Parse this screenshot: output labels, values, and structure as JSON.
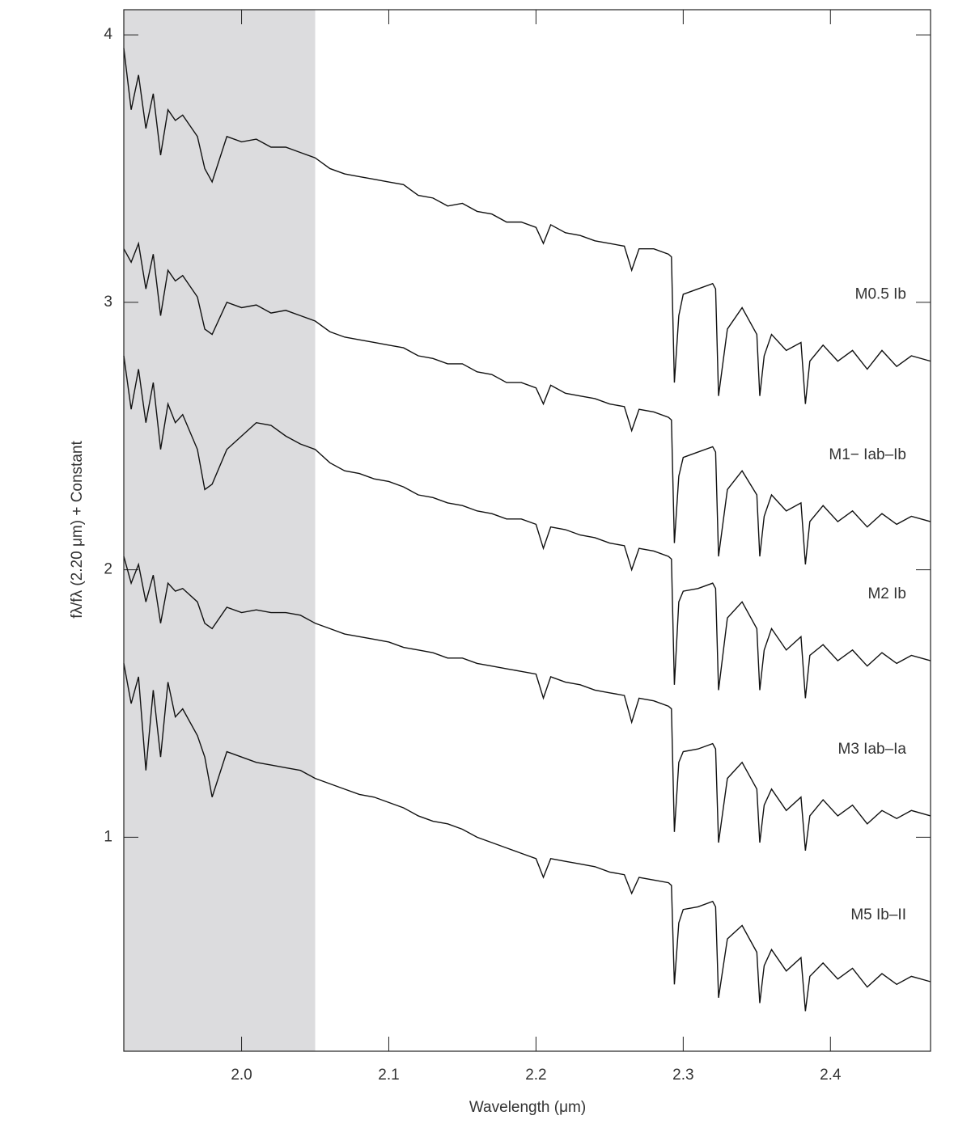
{
  "chart_data": {
    "type": "line",
    "xlabel": "Wavelength (μm)",
    "ylabel": "fλ/fλ (2.20 μm) + Constant",
    "xlim": [
      1.92,
      2.468
    ],
    "ylim": [
      0.2,
      4.094
    ],
    "xticks": [
      {
        "value": 2,
        "label": "2.0"
      },
      2.1,
      2.2,
      2.3,
      2.4
    ],
    "yticks": [
      1,
      2,
      3,
      4
    ],
    "shade_x": [
      1.92,
      2.05
    ],
    "shade_color": "#dcdcde",
    "x": [
      1.92,
      1.925,
      1.93,
      1.935,
      1.94,
      1.945,
      1.95,
      1.955,
      1.96,
      1.97,
      1.975,
      1.98,
      1.99,
      2.0,
      2.01,
      2.02,
      2.03,
      2.04,
      2.05,
      2.06,
      2.07,
      2.08,
      2.09,
      2.1,
      2.11,
      2.12,
      2.13,
      2.14,
      2.15,
      2.16,
      2.17,
      2.18,
      2.19,
      2.2,
      2.205,
      2.21,
      2.22,
      2.23,
      2.24,
      2.25,
      2.26,
      2.265,
      2.27,
      2.28,
      2.29,
      2.292,
      2.294,
      2.297,
      2.3,
      2.31,
      2.32,
      2.322,
      2.324,
      2.33,
      2.34,
      2.35,
      2.352,
      2.355,
      2.36,
      2.37,
      2.38,
      2.383,
      2.386,
      2.395,
      2.405,
      2.415,
      2.425,
      2.435,
      2.445,
      2.455,
      2.468
    ],
    "series": [
      {
        "name": "M0.5 Ib",
        "color": "#111111",
        "values": [
          3.95,
          3.72,
          3.85,
          3.65,
          3.78,
          3.55,
          3.72,
          3.68,
          3.7,
          3.62,
          3.5,
          3.45,
          3.62,
          3.6,
          3.61,
          3.58,
          3.58,
          3.56,
          3.54,
          3.5,
          3.48,
          3.47,
          3.46,
          3.45,
          3.44,
          3.4,
          3.39,
          3.36,
          3.37,
          3.34,
          3.33,
          3.3,
          3.3,
          3.28,
          3.22,
          3.29,
          3.26,
          3.25,
          3.23,
          3.22,
          3.21,
          3.12,
          3.2,
          3.2,
          3.18,
          3.17,
          2.7,
          2.95,
          3.03,
          3.05,
          3.07,
          3.05,
          2.65,
          2.9,
          2.98,
          2.88,
          2.65,
          2.8,
          2.88,
          2.82,
          2.85,
          2.62,
          2.78,
          2.84,
          2.78,
          2.82,
          2.75,
          2.82,
          2.76,
          2.8,
          2.78
        ]
      },
      {
        "name": "M1− Iab–Ib",
        "color": "#111111",
        "values": [
          3.2,
          3.15,
          3.22,
          3.05,
          3.18,
          2.95,
          3.12,
          3.08,
          3.1,
          3.02,
          2.9,
          2.88,
          3.0,
          2.98,
          2.99,
          2.96,
          2.97,
          2.95,
          2.93,
          2.89,
          2.87,
          2.86,
          2.85,
          2.84,
          2.83,
          2.8,
          2.79,
          2.77,
          2.77,
          2.74,
          2.73,
          2.7,
          2.7,
          2.68,
          2.62,
          2.69,
          2.66,
          2.65,
          2.64,
          2.62,
          2.61,
          2.52,
          2.6,
          2.59,
          2.57,
          2.56,
          2.1,
          2.35,
          2.42,
          2.44,
          2.46,
          2.44,
          2.05,
          2.3,
          2.37,
          2.28,
          2.05,
          2.2,
          2.28,
          2.22,
          2.25,
          2.02,
          2.18,
          2.24,
          2.18,
          2.22,
          2.16,
          2.21,
          2.17,
          2.2,
          2.18
        ]
      },
      {
        "name": "M2 Ib",
        "color": "#111111",
        "values": [
          2.8,
          2.6,
          2.75,
          2.55,
          2.7,
          2.45,
          2.62,
          2.55,
          2.58,
          2.45,
          2.3,
          2.32,
          2.45,
          2.5,
          2.55,
          2.54,
          2.5,
          2.47,
          2.45,
          2.4,
          2.37,
          2.36,
          2.34,
          2.33,
          2.31,
          2.28,
          2.27,
          2.25,
          2.24,
          2.22,
          2.21,
          2.19,
          2.19,
          2.17,
          2.08,
          2.16,
          2.15,
          2.13,
          2.12,
          2.1,
          2.09,
          2.0,
          2.08,
          2.07,
          2.05,
          2.04,
          1.57,
          1.88,
          1.92,
          1.93,
          1.95,
          1.93,
          1.55,
          1.82,
          1.88,
          1.78,
          1.55,
          1.7,
          1.78,
          1.7,
          1.75,
          1.52,
          1.68,
          1.72,
          1.66,
          1.7,
          1.64,
          1.69,
          1.65,
          1.68,
          1.66
        ]
      },
      {
        "name": "M3 Iab–Ia",
        "color": "#111111",
        "values": [
          2.05,
          1.95,
          2.02,
          1.88,
          1.98,
          1.8,
          1.95,
          1.92,
          1.93,
          1.88,
          1.8,
          1.78,
          1.86,
          1.84,
          1.85,
          1.84,
          1.84,
          1.83,
          1.8,
          1.78,
          1.76,
          1.75,
          1.74,
          1.73,
          1.71,
          1.7,
          1.69,
          1.67,
          1.67,
          1.65,
          1.64,
          1.63,
          1.62,
          1.61,
          1.52,
          1.6,
          1.58,
          1.57,
          1.55,
          1.54,
          1.53,
          1.43,
          1.52,
          1.51,
          1.49,
          1.48,
          1.02,
          1.28,
          1.32,
          1.33,
          1.35,
          1.33,
          0.98,
          1.22,
          1.28,
          1.18,
          0.98,
          1.12,
          1.18,
          1.1,
          1.15,
          0.95,
          1.08,
          1.14,
          1.08,
          1.12,
          1.05,
          1.1,
          1.07,
          1.1,
          1.08
        ]
      },
      {
        "name": "M5 Ib–II",
        "color": "#111111",
        "values": [
          1.65,
          1.5,
          1.6,
          1.25,
          1.55,
          1.3,
          1.58,
          1.45,
          1.48,
          1.38,
          1.3,
          1.15,
          1.32,
          1.3,
          1.28,
          1.27,
          1.26,
          1.25,
          1.22,
          1.2,
          1.18,
          1.16,
          1.15,
          1.13,
          1.11,
          1.08,
          1.06,
          1.05,
          1.03,
          1.0,
          0.98,
          0.96,
          0.94,
          0.92,
          0.85,
          0.92,
          0.91,
          0.9,
          0.89,
          0.87,
          0.86,
          0.79,
          0.85,
          0.84,
          0.83,
          0.82,
          0.45,
          0.68,
          0.73,
          0.74,
          0.76,
          0.74,
          0.4,
          0.62,
          0.67,
          0.57,
          0.38,
          0.52,
          0.58,
          0.5,
          0.55,
          0.35,
          0.48,
          0.53,
          0.47,
          0.51,
          0.44,
          0.49,
          0.45,
          0.48,
          0.46
        ]
      }
    ]
  }
}
